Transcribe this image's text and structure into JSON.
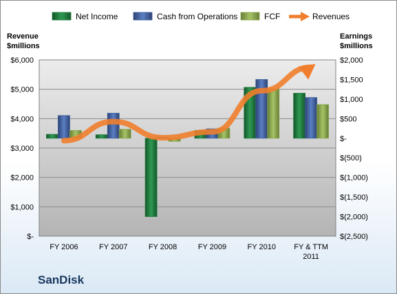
{
  "company": "SanDisk",
  "chart_data": {
    "type": "bar",
    "categories": [
      "FY 2006",
      "FY 2007",
      "FY 2008",
      "FY 2009",
      "FY 2010",
      "FY & TTM 2011"
    ],
    "left_axis": {
      "title_line1": "Revenue",
      "title_line2": "$millions",
      "ylim": [
        0,
        6000
      ],
      "ticks": [
        0,
        1000,
        2000,
        3000,
        4000,
        5000,
        6000
      ],
      "tick_labels": [
        "$-",
        "$1,000",
        "$2,000",
        "$3,000",
        "$4,000",
        "$5,000",
        "$6,000"
      ]
    },
    "right_axis": {
      "title_line1": "Earnings",
      "title_line2": "$millions",
      "ylim": [
        -2500,
        2000
      ],
      "ticks": [
        -2500,
        -2000,
        -1500,
        -1000,
        -500,
        0,
        500,
        1000,
        1500,
        2000
      ],
      "tick_labels": [
        "$(2,500)",
        "$(2,000)",
        "$(1,500)",
        "$(1,000)",
        "$(500)",
        "$-",
        "$500",
        "$1,000",
        "$1,500",
        "$2,000"
      ]
    },
    "series": [
      {
        "name": "Net Income",
        "axis": "right",
        "kind": "bar",
        "color": "#1e7a3c",
        "values": [
          100,
          90,
          -2000,
          200,
          1300,
          1150
        ]
      },
      {
        "name": "Cash from Operations",
        "axis": "right",
        "kind": "bar",
        "color": "#3e5f9e",
        "values": [
          580,
          640,
          20,
          240,
          1500,
          1040
        ]
      },
      {
        "name": "FCF",
        "axis": "right",
        "kind": "bar",
        "color": "#8aa64e",
        "values": [
          200,
          230,
          -80,
          260,
          1260,
          860
        ]
      },
      {
        "name": "Revenues",
        "axis": "left",
        "kind": "line",
        "color": "#f07e2c",
        "values": [
          3250,
          3900,
          3350,
          3550,
          4950,
          5750
        ]
      }
    ],
    "legend_position": "top",
    "grid": true
  }
}
